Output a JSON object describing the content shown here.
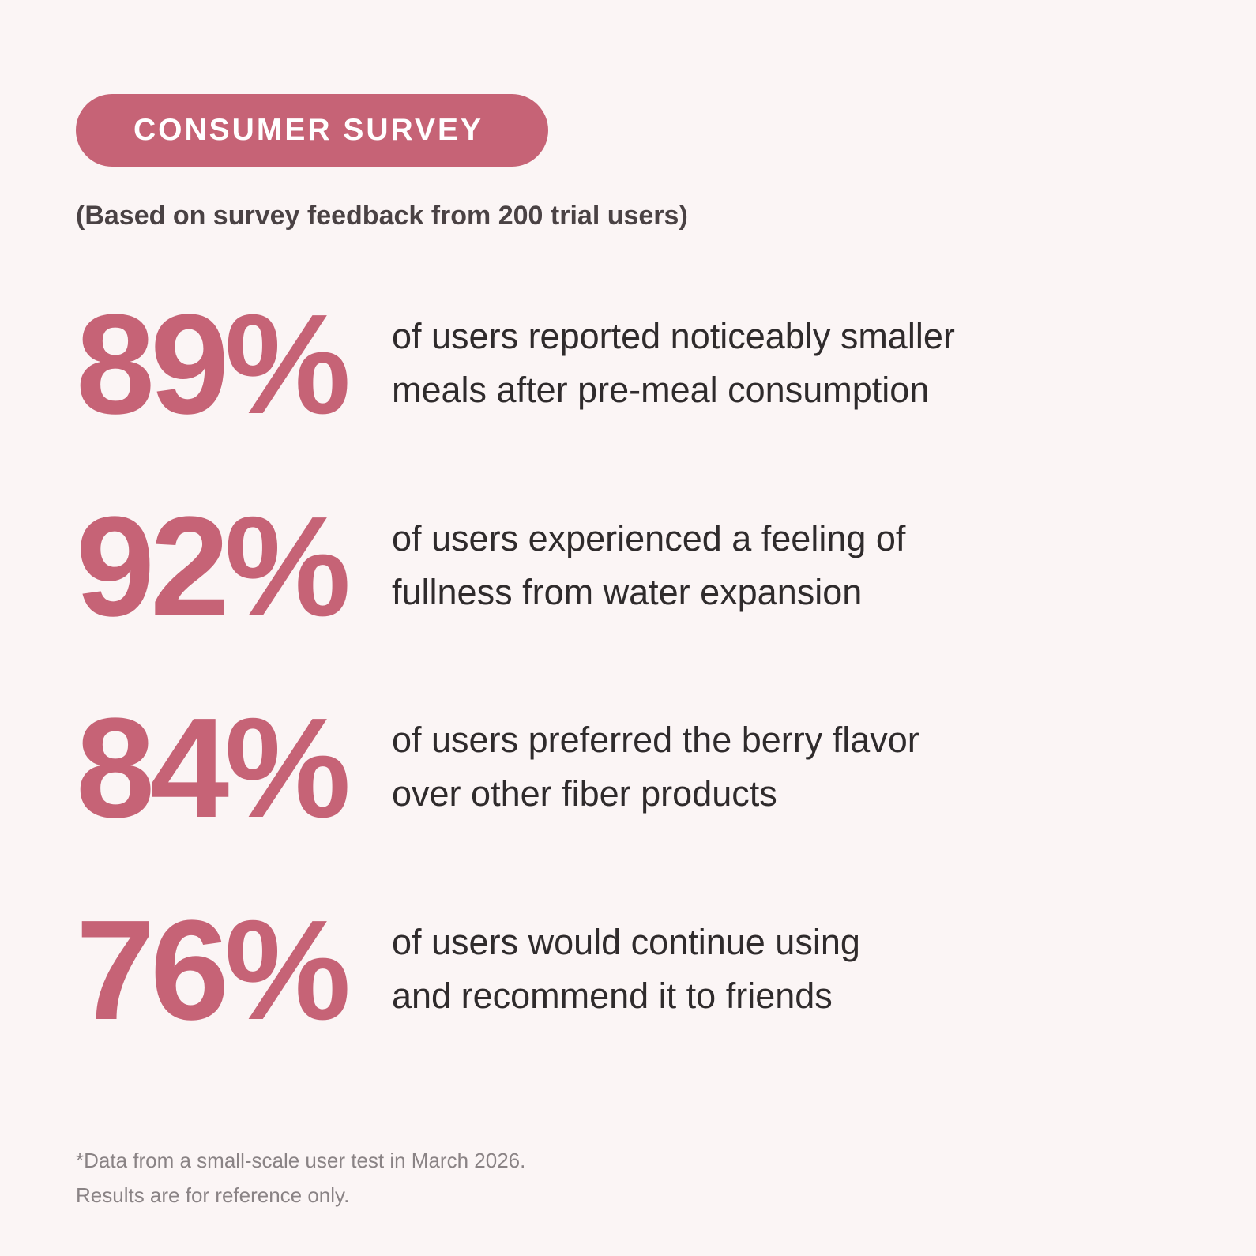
{
  "header": {
    "badge_label": "CONSUMER SURVEY",
    "subtitle": "(Based on survey feedback from 200 trial users)"
  },
  "stats": [
    {
      "value": "89%",
      "line1": "of users reported noticeably smaller",
      "line2": "meals after pre-meal consumption"
    },
    {
      "value": "92%",
      "line1": "of users experienced a feeling of",
      "line2": "fullness from water expansion"
    },
    {
      "value": "84%",
      "line1": "of users preferred the berry flavor",
      "line2": "over other fiber products"
    },
    {
      "value": "76%",
      "line1": "of users would continue using",
      "line2": "and recommend it to friends"
    }
  ],
  "footnote": {
    "line1": "*Data from a small-scale user test in March 2026.",
    "line2": "Results are for reference only."
  },
  "colors": {
    "background": "#fbf5f5",
    "accent": "#c66376",
    "text": "#2f2b2c",
    "muted": "#8a8385"
  }
}
